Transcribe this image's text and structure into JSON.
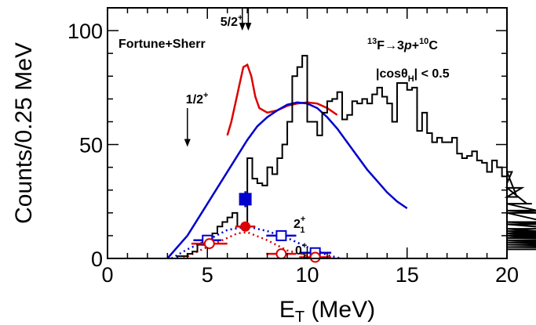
{
  "chart_data": {
    "type": "histogram",
    "xlabel_main": "E",
    "xlabel_sub": "T",
    "xlabel_unit": "(MeV)",
    "ylabel": "Counts/0.25 MeV",
    "xlim": [
      0,
      20
    ],
    "ylim": [
      0,
      110
    ],
    "x_ticks": [
      0,
      5,
      10,
      15,
      20
    ],
    "y_ticks": [
      0,
      50,
      100
    ],
    "histogram": {
      "bin_width": 0.25,
      "start": 3.0,
      "counts": [
        0,
        0,
        1,
        1,
        2,
        3,
        6,
        7,
        8,
        11,
        14,
        16,
        18,
        20,
        14,
        14,
        44,
        35,
        33,
        32,
        40,
        37,
        44,
        50,
        60,
        80,
        84,
        89,
        60,
        60,
        54,
        64,
        69,
        70,
        73,
        61,
        63,
        69,
        68,
        70,
        68,
        72,
        75,
        71,
        68,
        60,
        77,
        77,
        74,
        75,
        56,
        64,
        55,
        51,
        53,
        51,
        51,
        53,
        46,
        44,
        45,
        47,
        43,
        42,
        38,
        43,
        40,
        36,
        33,
        38,
        27,
        31,
        24,
        24,
        21,
        20,
        16,
        15,
        15,
        13,
        11,
        12,
        10,
        13,
        10,
        11,
        9,
        12,
        9,
        10,
        7,
        9,
        9,
        8,
        7,
        6,
        7,
        7,
        6,
        6,
        5,
        6,
        5,
        5,
        6,
        5,
        4,
        4
      ]
    },
    "series": [
      {
        "color": "#dd0000",
        "style": "line",
        "points": [
          [
            6.0,
            54
          ],
          [
            6.2,
            60
          ],
          [
            6.4,
            68
          ],
          [
            6.6,
            76
          ],
          [
            6.8,
            84
          ],
          [
            7.0,
            85
          ],
          [
            7.2,
            80
          ],
          [
            7.4,
            71
          ],
          [
            7.6,
            66
          ],
          [
            8.0,
            64
          ],
          [
            8.5,
            65
          ],
          [
            9.0,
            67
          ],
          [
            9.5,
            68
          ],
          [
            10.0,
            68.5
          ],
          [
            10.5,
            68
          ],
          [
            11.0,
            66
          ],
          [
            11.5,
            63
          ]
        ]
      },
      {
        "color": "#0000cc",
        "style": "line",
        "points": [
          [
            3.0,
            0
          ],
          [
            3.5,
            5
          ],
          [
            4.0,
            10
          ],
          [
            4.5,
            17
          ],
          [
            5.0,
            24
          ],
          [
            5.5,
            31
          ],
          [
            6.0,
            38
          ],
          [
            6.5,
            45
          ],
          [
            7.0,
            52
          ],
          [
            7.5,
            58
          ],
          [
            8.0,
            62
          ],
          [
            8.5,
            65
          ],
          [
            9.0,
            67.5
          ],
          [
            9.5,
            68.5
          ],
          [
            10.0,
            68
          ],
          [
            10.5,
            66
          ],
          [
            11.0,
            62
          ],
          [
            11.5,
            57
          ],
          [
            12.0,
            51
          ],
          [
            12.5,
            45
          ],
          [
            13.0,
            39
          ],
          [
            13.5,
            34
          ],
          [
            14.0,
            29
          ],
          [
            14.5,
            25
          ],
          [
            15.0,
            22
          ]
        ]
      },
      {
        "color": "#0000cc",
        "style": "dotted",
        "points": [
          [
            3.2,
            0
          ],
          [
            4.0,
            4
          ],
          [
            5.0,
            8
          ],
          [
            6.0,
            12.5
          ],
          [
            7.0,
            14
          ],
          [
            8.0,
            12
          ],
          [
            9.0,
            9
          ],
          [
            10.0,
            5
          ],
          [
            11.0,
            1.5
          ],
          [
            11.7,
            0
          ]
        ]
      },
      {
        "color": "#dd0000",
        "style": "dotted",
        "points": [
          [
            3.8,
            0
          ],
          [
            4.5,
            3
          ],
          [
            5.5,
            7
          ],
          [
            6.5,
            11
          ],
          [
            7.0,
            11.5
          ],
          [
            8.0,
            8
          ],
          [
            9.0,
            3.5
          ],
          [
            10.0,
            1.3
          ],
          [
            11.5,
            0
          ]
        ]
      }
    ],
    "markers": [
      {
        "x": 6.9,
        "y": 26,
        "xerr": 0.25,
        "yerr": 3.5,
        "shape": "filled-square",
        "color": "#0000cc"
      },
      {
        "x": 5.0,
        "y": 8,
        "xerr": 0.7,
        "yerr": 1.5,
        "shape": "open-square",
        "color": "#0000cc"
      },
      {
        "x": 8.7,
        "y": 10,
        "xerr": 0.75,
        "yerr": 1.5,
        "shape": "open-square",
        "color": "#0000cc"
      },
      {
        "x": 10.4,
        "y": 2.5,
        "xerr": 0.8,
        "yerr": 1.5,
        "shape": "open-square",
        "color": "#0000cc"
      },
      {
        "x": 6.9,
        "y": 14,
        "xerr": 0.5,
        "yerr": 1.2,
        "shape": "filled-circle",
        "color": "#dd0000"
      },
      {
        "x": 5.1,
        "y": 6.5,
        "xerr": 0.9,
        "yerr": 1.2,
        "shape": "open-circle",
        "color": "#dd0000"
      },
      {
        "x": 8.7,
        "y": 2,
        "xerr": 0.75,
        "yerr": 1.2,
        "shape": "open-circle",
        "color": "#dd0000"
      },
      {
        "x": 10.4,
        "y": 0.5,
        "xerr": 0.8,
        "yerr": 1.2,
        "shape": "open-circle",
        "color": "#dd0000"
      }
    ],
    "arrows": [
      {
        "label": "1/2",
        "sup": "+",
        "x": 4.0,
        "y_top": 66,
        "y_bottom": 49
      },
      {
        "label": "5/2",
        "sup": "+",
        "x": 6.75,
        "y_top": 110,
        "y_bottom": 100
      },
      {
        "label": "",
        "sup": "",
        "x": 7.05,
        "y_top": 110,
        "y_bottom": 100
      }
    ],
    "annotations": {
      "fortune_label": "Fortune+Sherr",
      "reaction": {
        "sup1": "13",
        "p1": "F→",
        "p2": "3",
        "p2_italic": "p",
        "p3": "+",
        "sup2": "10",
        "p4": "C"
      },
      "cut": {
        "p1": "|cosθ",
        "sub": "H",
        "p2": "| < 0.5"
      },
      "label_2plus": {
        "base": "2",
        "sup": "+",
        "sub": "1",
        "color": "#0000cc"
      },
      "label_0plus": {
        "base": "0",
        "sup": "+",
        "sub": "1",
        "color": "#dd0000"
      }
    }
  }
}
